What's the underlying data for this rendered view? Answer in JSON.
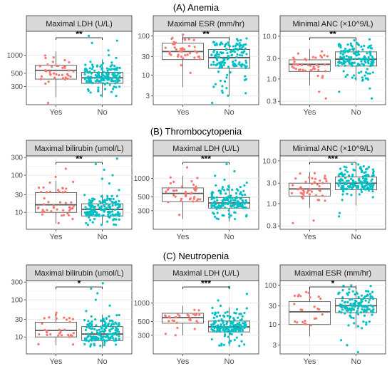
{
  "colors": {
    "yes": "#F8766D",
    "no": "#00BFC4",
    "strip_bg": "#D9D9D9",
    "grid": "#EBEBEB",
    "box": "#595959"
  },
  "sections": [
    {
      "title": "(A) Anemia"
    },
    {
      "title": "(B) Thrombocytopenia"
    },
    {
      "title": "(C) Neutropenia"
    }
  ],
  "chart_data": [
    {
      "type": "box",
      "section": 0,
      "title": "Maximal LDH (U/L)",
      "scale": "log10",
      "ylim": [
        150,
        2500
      ],
      "yticks": [
        300,
        500,
        1000
      ],
      "ytick_labels": [
        "300",
        "500",
        "1000"
      ],
      "categories": [
        "Yes",
        "No"
      ],
      "significance": "**",
      "series": [
        {
          "name": "Yes",
          "n": 40,
          "whisker_low": 200,
          "q1": 400,
          "median": 560,
          "q3": 680,
          "whisker_high": 1150,
          "outliers": [
            160
          ]
        },
        {
          "name": "No",
          "n": 150,
          "whisker_low": 200,
          "q1": 340,
          "median": 420,
          "q3": 520,
          "whisker_high": 850,
          "outliers": [
            900,
            1000,
            1200,
            1600,
            1750,
            2100
          ]
        }
      ]
    },
    {
      "type": "box",
      "section": 0,
      "title": "Maximal ESR (mm/hr)",
      "scale": "log10",
      "ylim": [
        1.8,
        130
      ],
      "yticks": [
        3,
        10,
        30,
        100
      ],
      "ytick_labels": [
        "3",
        "10",
        "30",
        "100"
      ],
      "categories": [
        "Yes",
        "No"
      ],
      "significance": "**",
      "series": [
        {
          "name": "Yes",
          "n": 40,
          "whisker_low": 5,
          "q1": 25,
          "median": 40,
          "q3": 65,
          "whisker_high": 110,
          "outliers": []
        },
        {
          "name": "No",
          "n": 140,
          "whisker_low": 3,
          "q1": 15,
          "median": 28,
          "q3": 45,
          "whisker_high": 95,
          "outliers": [
            2
          ]
        }
      ]
    },
    {
      "type": "box",
      "section": 0,
      "title": "Minimal ANC (×10^9/L)",
      "scale": "log10",
      "ylim": [
        0.25,
        13
      ],
      "yticks": [
        0.3,
        1.0,
        3.0,
        10.0
      ],
      "ytick_labels": [
        "0.3",
        "1.0",
        "3.0",
        "10.0"
      ],
      "categories": [
        "Yes",
        "No"
      ],
      "significance": "**",
      "series": [
        {
          "name": "Yes",
          "n": 40,
          "whisker_low": 0.7,
          "q1": 1.5,
          "median": 2.2,
          "q3": 2.8,
          "whisker_high": 5,
          "outliers": [
            0.35,
            0.5
          ]
        },
        {
          "name": "No",
          "n": 150,
          "whisker_low": 0.9,
          "q1": 2.0,
          "median": 2.9,
          "q3": 4.3,
          "whisker_high": 9,
          "outliers": [
            0.35,
            0.5,
            0.6
          ]
        }
      ]
    },
    {
      "type": "box",
      "section": 1,
      "title": "Maximal bilirubin (umol/L)",
      "scale": "log10",
      "ylim": [
        3.5,
        330
      ],
      "yticks": [
        10,
        30,
        100,
        300
      ],
      "ytick_labels": [
        "10",
        "30",
        "100",
        "300"
      ],
      "categories": [
        "Yes",
        "No"
      ],
      "significance": "**",
      "series": [
        {
          "name": "Yes",
          "n": 45,
          "whisker_low": 5,
          "q1": 10,
          "median": 16,
          "q3": 34,
          "whisker_high": 70,
          "outliers": [
            90,
            150
          ]
        },
        {
          "name": "No",
          "n": 150,
          "whisker_low": 4.5,
          "q1": 8,
          "median": 12,
          "q3": 17,
          "whisker_high": 30,
          "outliers": [
            40,
            60,
            80,
            100,
            140,
            200,
            280
          ]
        }
      ]
    },
    {
      "type": "box",
      "section": 1,
      "title": "Maximal LDH (U/L)",
      "scale": "log10",
      "ylim": [
        150,
        2300
      ],
      "yticks": [
        300,
        500,
        1000
      ],
      "ytick_labels": [
        "300",
        "500",
        "1000"
      ],
      "categories": [
        "Yes",
        "No"
      ],
      "significance": "***",
      "series": [
        {
          "name": "Yes",
          "n": 40,
          "whisker_low": 220,
          "q1": 420,
          "median": 570,
          "q3": 700,
          "whisker_high": 1100,
          "outliers": [
            1500
          ]
        },
        {
          "name": "No",
          "n": 150,
          "whisker_low": 200,
          "q1": 330,
          "median": 400,
          "q3": 490,
          "whisker_high": 800,
          "outliers": [
            850,
            950,
            1100,
            1300,
            1700
          ]
        }
      ]
    },
    {
      "type": "box",
      "section": 1,
      "title": "Minimal ANC (×10^9/L)",
      "scale": "log10",
      "ylim": [
        0.25,
        13
      ],
      "yticks": [
        0.3,
        1.0,
        3.0,
        10.0
      ],
      "ytick_labels": [
        "0.3",
        "1.0",
        "3.0",
        "10.0"
      ],
      "categories": [
        "Yes",
        "No"
      ],
      "significance": "***",
      "series": [
        {
          "name": "Yes",
          "n": 45,
          "whisker_low": 0.8,
          "q1": 1.5,
          "median": 2.2,
          "q3": 3.0,
          "whisker_high": 5.5,
          "outliers": [
            0.35,
            0.4
          ]
        },
        {
          "name": "No",
          "n": 150,
          "whisker_low": 0.9,
          "q1": 2.1,
          "median": 3.0,
          "q3": 4.2,
          "whisker_high": 9,
          "outliers": [
            0.5,
            0.6
          ]
        }
      ]
    },
    {
      "type": "box",
      "section": 2,
      "title": "Maximal bilirubin (umol/L)",
      "scale": "log10",
      "ylim": [
        3.5,
        330
      ],
      "yticks": [
        10,
        30,
        100,
        300
      ],
      "ytick_labels": [
        "10",
        "30",
        "100",
        "300"
      ],
      "categories": [
        "Yes",
        "No"
      ],
      "significance": "*",
      "series": [
        {
          "name": "Yes",
          "n": 30,
          "whisker_low": 6,
          "q1": 10,
          "median": 15,
          "q3": 25,
          "whisker_high": 45,
          "outliers": []
        },
        {
          "name": "No",
          "n": 150,
          "whisker_low": 5,
          "q1": 8,
          "median": 12,
          "q3": 19,
          "whisker_high": 40,
          "outliers": [
            50,
            70,
            100,
            150,
            200,
            280
          ]
        }
      ]
    },
    {
      "type": "box",
      "section": 2,
      "title": "Maximal LDH (U/L)",
      "scale": "log10",
      "ylim": [
        150,
        2300
      ],
      "yticks": [
        300,
        500,
        1000
      ],
      "ytick_labels": [
        "300",
        "500",
        "1000"
      ],
      "categories": [
        "Yes",
        "No"
      ],
      "significance": "***",
      "series": [
        {
          "name": "Yes",
          "n": 30,
          "whisker_low": 300,
          "q1": 470,
          "median": 580,
          "q3": 680,
          "whisker_high": 900,
          "outliers": []
        },
        {
          "name": "No",
          "n": 160,
          "whisker_low": 200,
          "q1": 340,
          "median": 410,
          "q3": 510,
          "whisker_high": 850,
          "outliers": [
            900,
            1100,
            1400,
            1800
          ]
        }
      ]
    },
    {
      "type": "box",
      "section": 2,
      "title": "Maximal ESR (mm/hr)",
      "scale": "log10",
      "ylim": [
        1.8,
        130
      ],
      "yticks": [
        3,
        10,
        30,
        100
      ],
      "ytick_labels": [
        "3",
        "10",
        "30",
        "100"
      ],
      "categories": [
        "Yes",
        "No"
      ],
      "significance": "*",
      "series": [
        {
          "name": "Yes",
          "n": 25,
          "whisker_low": 5,
          "q1": 10,
          "median": 21,
          "q3": 38,
          "whisker_high": 90,
          "outliers": []
        },
        {
          "name": "No",
          "n": 140,
          "whisker_low": 8,
          "q1": 20,
          "median": 30,
          "q3": 45,
          "whisker_high": 100,
          "outliers": [
            2,
            3,
            4
          ]
        }
      ]
    }
  ]
}
